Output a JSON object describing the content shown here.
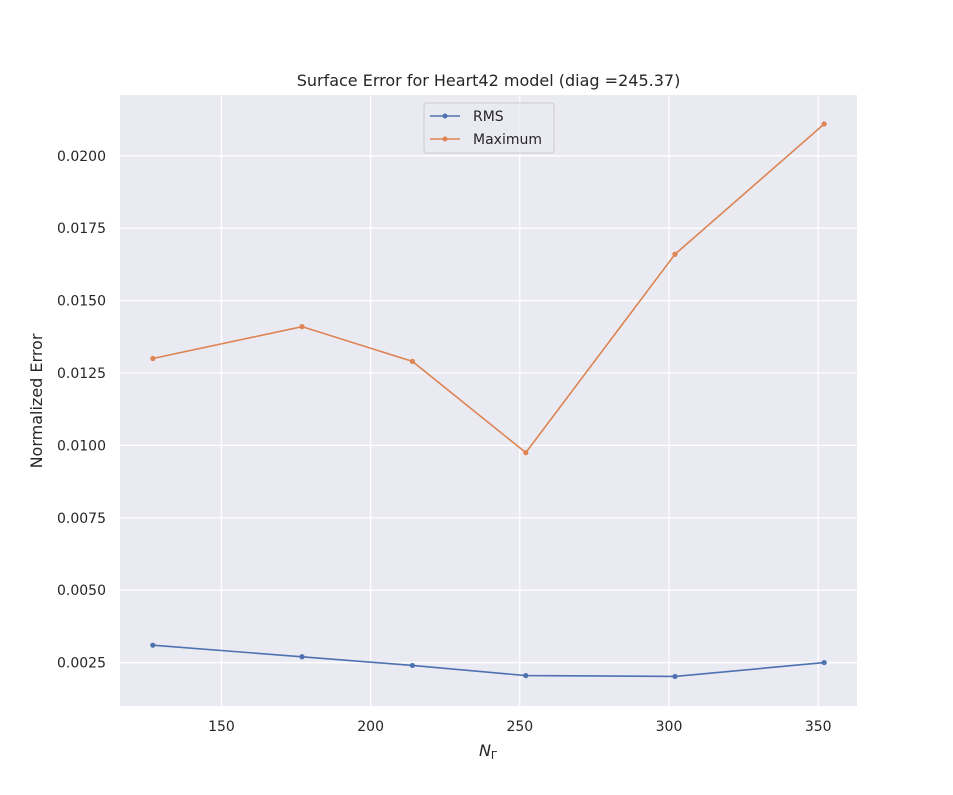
{
  "chart_data": {
    "type": "line",
    "title": "Surface Error for Heart42 model (diag =245.37)",
    "xlabel_main": "N",
    "xlabel_sub": "Γ",
    "ylabel": "Normalized Error",
    "xlim": [
      116,
      363
    ],
    "ylim": [
      0.001,
      0.0221
    ],
    "xticks": [
      150,
      200,
      250,
      300,
      350
    ],
    "yticks": [
      0.0025,
      0.005,
      0.0075,
      0.01,
      0.0125,
      0.015,
      0.0175,
      0.02
    ],
    "ytick_labels": [
      "0.0025",
      "0.0050",
      "0.0075",
      "0.0100",
      "0.0125",
      "0.0150",
      "0.0175",
      "0.0200"
    ],
    "grid": true,
    "legend_position": "upper-center",
    "x": [
      127,
      177,
      214,
      252,
      302,
      352
    ],
    "series": [
      {
        "name": "RMS",
        "color": "#4c72b0",
        "values": [
          0.0031,
          0.0027,
          0.0024,
          0.00205,
          0.00202,
          0.0025
        ]
      },
      {
        "name": "Maximum",
        "color": "#dd8452",
        "values": [
          0.013,
          0.0141,
          0.0129,
          0.00975,
          0.0166,
          0.0211
        ]
      }
    ]
  }
}
